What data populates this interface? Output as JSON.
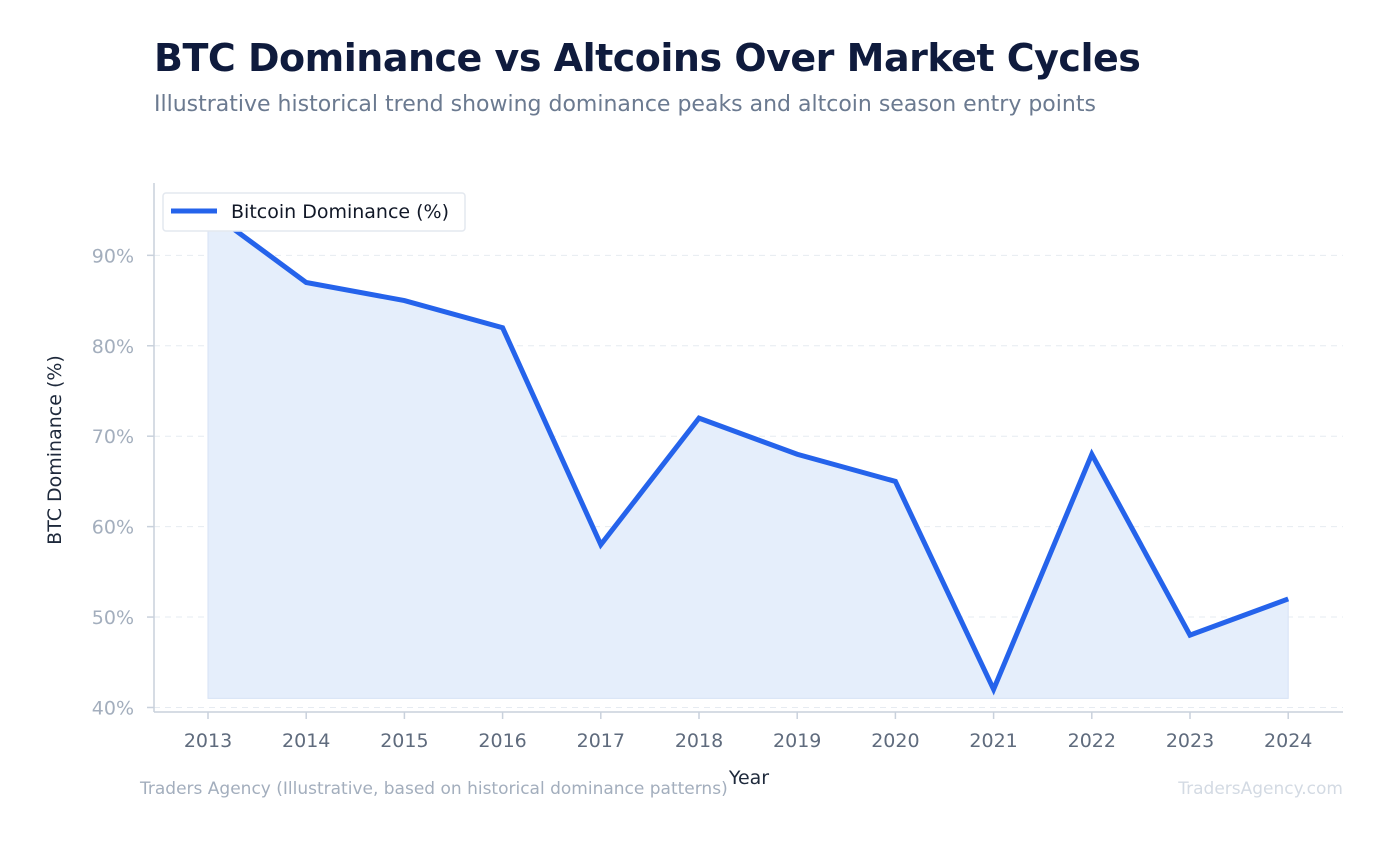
{
  "header": {
    "title": "BTC Dominance vs Altcoins Over Market Cycles",
    "subtitle": "Illustrative historical trend showing dominance peaks and altcoin season entry points"
  },
  "footer": {
    "source": "Traders Agency (Illustrative, based on historical dominance patterns)",
    "watermark": "TradersAgency.com"
  },
  "chart_data": {
    "type": "line",
    "x": [
      "2013",
      "2014",
      "2015",
      "2016",
      "2017",
      "2018",
      "2019",
      "2020",
      "2021",
      "2022",
      "2023",
      "2024"
    ],
    "series": [
      {
        "name": "Bitcoin Dominance (%)",
        "values": [
          95,
          87,
          85,
          82,
          58,
          72,
          68,
          65,
          42,
          68,
          48,
          52
        ],
        "color": "#2563eb",
        "fill": "#e5eefb",
        "area_baseline": 41
      }
    ],
    "xlabel": "Year",
    "ylabel": "BTC Dominance (%)",
    "ylim": [
      39.5,
      98
    ],
    "yticks": [
      40,
      50,
      60,
      70,
      80,
      90
    ],
    "ytick_labels": [
      "40%",
      "50%",
      "60%",
      "70%",
      "80%",
      "90%"
    ],
    "grid": "horizontal-dashed",
    "legend": "top-left"
  },
  "colors": {
    "axis": "#c9d1dc",
    "grid": "#e6ebf1",
    "ytick_text": "#a3aebd",
    "xtick_text": "#5f6b7d",
    "label_text": "#1e293b"
  }
}
